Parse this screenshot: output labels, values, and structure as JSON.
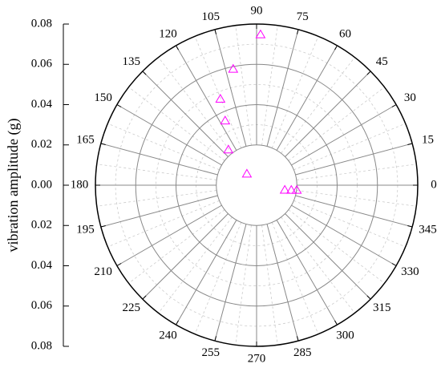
{
  "chart_data": {
    "type": "polar-scatter",
    "r_axis_label": "vibration amplitude (g)",
    "rlim": [
      0,
      0.08
    ],
    "rticks": [
      {
        "value": 0,
        "label": "0.00"
      },
      0.02,
      0.04,
      0.06,
      0.08
    ],
    "thetaticks": [
      0,
      15,
      30,
      45,
      60,
      75,
      90,
      105,
      120,
      135,
      150,
      165,
      180,
      195,
      210,
      225,
      240,
      255,
      270,
      285,
      300,
      315,
      330,
      345
    ],
    "grid": true,
    "series": [
      {
        "color": "#ff00ff",
        "marker": "open-triangle",
        "theta": [
          88.5,
          101.4,
          112.8,
          116,
          128.5,
          130.6,
          350.3,
          352,
          353
        ],
        "r": [
          0.0748,
          0.0588,
          0.0464,
          0.0356,
          0.0225,
          0.0074,
          0.0142,
          0.0174,
          0.0201
        ]
      }
    ]
  }
}
